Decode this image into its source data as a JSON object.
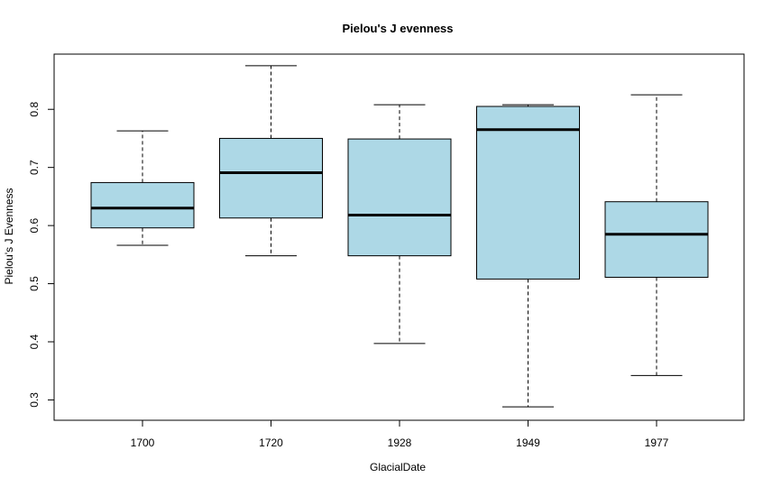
{
  "chart_data": {
    "type": "boxplot",
    "title": "Pielou's J evenness",
    "xlabel": "GlacialDate",
    "ylabel": "Pielou's J Evenness",
    "ylim": [
      0.265,
      0.895
    ],
    "yticks": [
      "0.3",
      "0.4",
      "0.5",
      "0.6",
      "0.7",
      "0.8"
    ],
    "grid": false,
    "legend": "none",
    "categories": [
      "1700",
      "1720",
      "1928",
      "1949",
      "1977"
    ],
    "boxes": [
      {
        "category": "1700",
        "whisker_low": 0.566,
        "q1": 0.596,
        "median": 0.63,
        "q3": 0.674,
        "whisker_high": 0.763
      },
      {
        "category": "1720",
        "whisker_low": 0.548,
        "q1": 0.613,
        "median": 0.691,
        "q3": 0.75,
        "whisker_high": 0.875
      },
      {
        "category": "1928",
        "whisker_low": 0.397,
        "q1": 0.548,
        "median": 0.618,
        "q3": 0.749,
        "whisker_high": 0.808
      },
      {
        "category": "1949",
        "whisker_low": 0.288,
        "q1": 0.508,
        "median": 0.765,
        "q3": 0.805,
        "whisker_high": 0.808
      },
      {
        "category": "1977",
        "whisker_low": 0.342,
        "q1": 0.511,
        "median": 0.585,
        "q3": 0.641,
        "whisker_high": 0.825
      }
    ],
    "colors": {
      "box_fill": "#add8e6",
      "stroke": "#000000"
    }
  }
}
